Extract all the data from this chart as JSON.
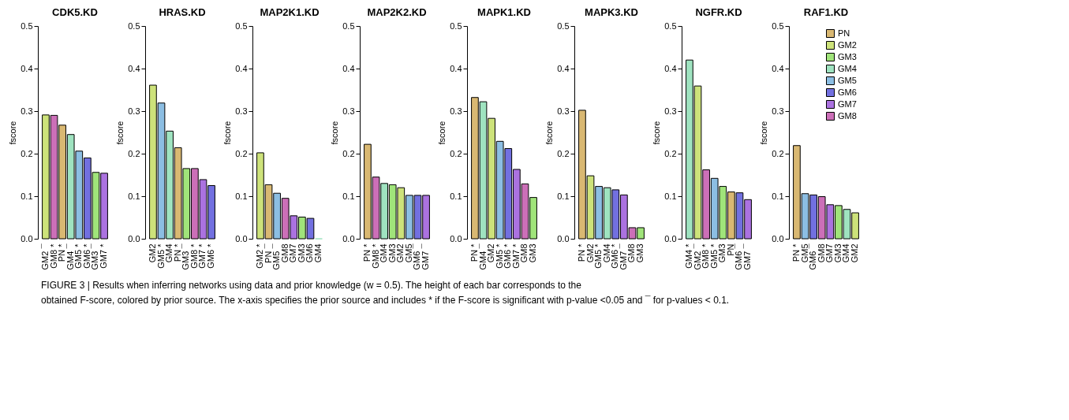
{
  "chart_data": [
    {
      "type": "bar",
      "title": "CDK5.KD",
      "ylabel": "fscore",
      "ylim": [
        0,
        0.5
      ],
      "yticks": [
        {
          "value": 0,
          "label": "0.0"
        },
        0.1,
        0.2,
        0.3,
        0.4,
        0.5
      ],
      "grid": false,
      "legend": false,
      "categories": [
        "GM2 ¯",
        "GM8 *",
        "PN *",
        "GM4 ¯",
        "GM5 *",
        "GM6 *",
        "GM3 ¯",
        "GM7 *"
      ],
      "values": [
        0.291,
        0.29,
        0.267,
        0.245,
        0.206,
        0.19,
        0.156,
        0.154
      ],
      "colors": [
        "#cde27a",
        "#cc6fb8",
        "#d9b872",
        "#9fe3c0",
        "#8cbee3",
        "#7270e0",
        "#a0e47a",
        "#ab72e0"
      ]
    },
    {
      "type": "bar",
      "title": "HRAS.KD",
      "ylabel": "fscore",
      "ylim": [
        0,
        0.5
      ],
      "yticks": [
        {
          "value": 0,
          "label": "0.0"
        },
        0.1,
        0.2,
        0.3,
        0.4,
        0.5
      ],
      "grid": false,
      "legend": false,
      "categories": [
        "GM2",
        "GM5 *",
        "GM4",
        "PN *",
        "GM3 ¯",
        "GM8 *",
        "GM7 *",
        "GM6 *"
      ],
      "values": [
        0.361,
        0.319,
        0.253,
        0.214,
        0.165,
        0.165,
        0.139,
        0.125
      ],
      "colors": [
        "#cde27a",
        "#8cbee3",
        "#9fe3c0",
        "#d9b872",
        "#a0e47a",
        "#cc6fb8",
        "#ab72e0",
        "#7270e0"
      ]
    },
    {
      "type": "bar",
      "title": "MAP2K1.KD",
      "ylabel": "fscore",
      "ylim": [
        0,
        0.5
      ],
      "yticks": [
        {
          "value": 0,
          "label": "0.0"
        },
        0.1,
        0.2,
        0.3,
        0.4,
        0.5
      ],
      "grid": false,
      "legend": false,
      "categories": [
        "GM2 *",
        "PN ¯",
        "GM5 ¯",
        "GM8",
        "GM7",
        "GM3",
        "GM6",
        "GM4"
      ],
      "values": [
        0.202,
        0.127,
        0.107,
        0.095,
        0.054,
        0.051,
        0.048,
        0.0
      ],
      "colors": [
        "#cde27a",
        "#d9b872",
        "#8cbee3",
        "#cc6fb8",
        "#ab72e0",
        "#a0e47a",
        "#7270e0",
        "#9fe3c0"
      ]
    },
    {
      "type": "bar",
      "title": "MAP2K2.KD",
      "ylabel": "fscore",
      "ylim": [
        0,
        0.5
      ],
      "yticks": [
        {
          "value": 0,
          "label": "0.0"
        },
        0.1,
        0.2,
        0.3,
        0.4,
        0.5
      ],
      "grid": false,
      "legend": false,
      "categories": [
        "PN *",
        "GM8 *",
        "GM4",
        "GM3",
        "GM2",
        "GM5",
        "GM6 ¯",
        "GM7 ¯"
      ],
      "values": [
        0.222,
        0.145,
        0.13,
        0.127,
        0.12,
        0.102,
        0.102,
        0.102
      ],
      "colors": [
        "#d9b872",
        "#cc6fb8",
        "#9fe3c0",
        "#a0e47a",
        "#cde27a",
        "#8cbee3",
        "#7270e0",
        "#ab72e0"
      ]
    },
    {
      "type": "bar",
      "title": "MAPK1.KD",
      "ylabel": "fscore",
      "ylim": [
        0,
        0.5
      ],
      "yticks": [
        {
          "value": 0,
          "label": "0.0"
        },
        0.1,
        0.2,
        0.3,
        0.4,
        0.5
      ],
      "grid": false,
      "legend": false,
      "categories": [
        "PN *",
        "GM4 ¯",
        "GM2",
        "GM5 *",
        "GM6 *",
        "GM7 *",
        "GM8",
        "GM3"
      ],
      "values": [
        0.332,
        0.322,
        0.283,
        0.229,
        0.212,
        0.163,
        0.129,
        0.097
      ],
      "colors": [
        "#d9b872",
        "#9fe3c0",
        "#cde27a",
        "#8cbee3",
        "#7270e0",
        "#ab72e0",
        "#cc6fb8",
        "#a0e47a"
      ]
    },
    {
      "type": "bar",
      "title": "MAPK3.KD",
      "ylabel": "fscore",
      "ylim": [
        0,
        0.5
      ],
      "yticks": [
        {
          "value": 0,
          "label": "0.0"
        },
        0.1,
        0.2,
        0.3,
        0.4,
        0.5
      ],
      "grid": false,
      "legend": false,
      "categories": [
        "PN *",
        "GM2",
        "GM5 *",
        "GM4",
        "GM6 *",
        "GM7 ¯",
        "GM8",
        "GM3"
      ],
      "values": [
        0.302,
        0.148,
        0.123,
        0.12,
        0.115,
        0.103,
        0.026,
        0.026
      ],
      "colors": [
        "#d9b872",
        "#cde27a",
        "#8cbee3",
        "#9fe3c0",
        "#7270e0",
        "#ab72e0",
        "#cc6fb8",
        "#a0e47a"
      ]
    },
    {
      "type": "bar",
      "title": "NGFR.KD",
      "ylabel": "fscore",
      "ylim": [
        0,
        0.5
      ],
      "yticks": [
        {
          "value": 0,
          "label": "0.0"
        },
        0.1,
        0.2,
        0.3,
        0.4,
        0.5
      ],
      "grid": false,
      "legend": false,
      "categories": [
        "GM4 *",
        "GM2 ¯",
        "GM8 *",
        "GM5 *",
        "GM3",
        "PN",
        "GM6 ¯",
        "GM7 ¯"
      ],
      "values": [
        0.42,
        0.359,
        0.162,
        0.142,
        0.123,
        0.11,
        0.108,
        0.092
      ],
      "colors": [
        "#9fe3c0",
        "#cde27a",
        "#cc6fb8",
        "#8cbee3",
        "#a0e47a",
        "#d9b872",
        "#7270e0",
        "#ab72e0"
      ]
    },
    {
      "type": "bar",
      "title": "RAF1.KD",
      "ylabel": "fscore",
      "ylim": [
        0,
        0.5
      ],
      "yticks": [
        {
          "value": 0,
          "label": "0.0"
        },
        0.1,
        0.2,
        0.3,
        0.4,
        0.5
      ],
      "grid": false,
      "legend": "top right",
      "categories": [
        "PN *",
        "GM5",
        "GM6 ¯",
        "GM8",
        "GM7",
        "GM3",
        "GM4",
        "GM2"
      ],
      "series": [
        {
          "name": "PN",
          "color": "#d9b872",
          "values": [
            0.219,
            null,
            null,
            null,
            null,
            null,
            null,
            null
          ]
        },
        {
          "name": "GM2",
          "color": "#cde27a",
          "values": [
            null,
            null,
            null,
            null,
            null,
            null,
            null,
            0.061
          ]
        },
        {
          "name": "GM3",
          "color": "#a0e47a",
          "values": [
            null,
            null,
            null,
            null,
            null,
            0.078,
            null,
            null
          ]
        },
        {
          "name": "GM4",
          "color": "#9fe3c0",
          "values": [
            null,
            null,
            null,
            null,
            null,
            null,
            0.069,
            null
          ]
        },
        {
          "name": "GM5",
          "color": "#8cbee3",
          "values": [
            null,
            0.106,
            null,
            null,
            null,
            null,
            null,
            null
          ]
        },
        {
          "name": "GM6",
          "color": "#7270e0",
          "values": [
            null,
            null,
            0.103,
            null,
            null,
            null,
            null,
            null
          ]
        },
        {
          "name": "GM7",
          "color": "#ab72e0",
          "values": [
            null,
            null,
            null,
            null,
            0.08,
            null,
            null,
            null
          ]
        },
        {
          "name": "GM8",
          "color": "#cc6fb8",
          "values": [
            null,
            null,
            null,
            0.099,
            null,
            null,
            null,
            null
          ]
        }
      ]
    },
    {
      "type": "other",
      "annotations": [
        "FIGURE 3 | Results when inferring networks using data and prior knowledge (w = 0.5). The height of each bar corresponds to the",
        "obtained F-score, colored by prior source. The x-axis specifies the prior source and includes * if the F-score is significant with p-value <0.05 and ¯ for p-values < 0.1."
      ]
    }
  ]
}
